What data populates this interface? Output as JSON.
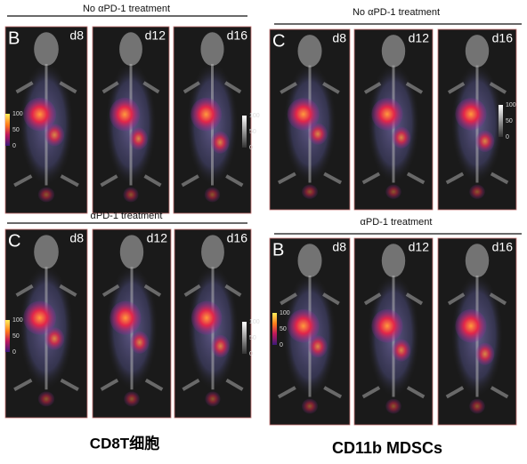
{
  "figures": [
    {
      "caption": "CD8T细胞",
      "panels": [
        {
          "header": "No αPD-1 treatment",
          "letter": "B",
          "days": [
            "d8",
            "d12",
            "d16"
          ],
          "scale": [
            "100",
            "50",
            "0"
          ]
        },
        {
          "header": "αPD-1 treatment",
          "letter": "C",
          "days": [
            "d8",
            "d12",
            "d16"
          ],
          "scale": [
            "100",
            "50",
            "0"
          ]
        }
      ]
    },
    {
      "caption": "CD11b MDSCs",
      "panels": [
        {
          "header": "No αPD-1 treatment",
          "letter": "C",
          "days": [
            "d8",
            "d12",
            "d16"
          ],
          "scale": [
            "100",
            "50",
            "0"
          ]
        },
        {
          "header": "αPD-1 treatment",
          "letter": "B",
          "days": [
            "d8",
            "d12",
            "d16"
          ],
          "scale": [
            "100",
            "50",
            "0"
          ]
        }
      ]
    }
  ]
}
